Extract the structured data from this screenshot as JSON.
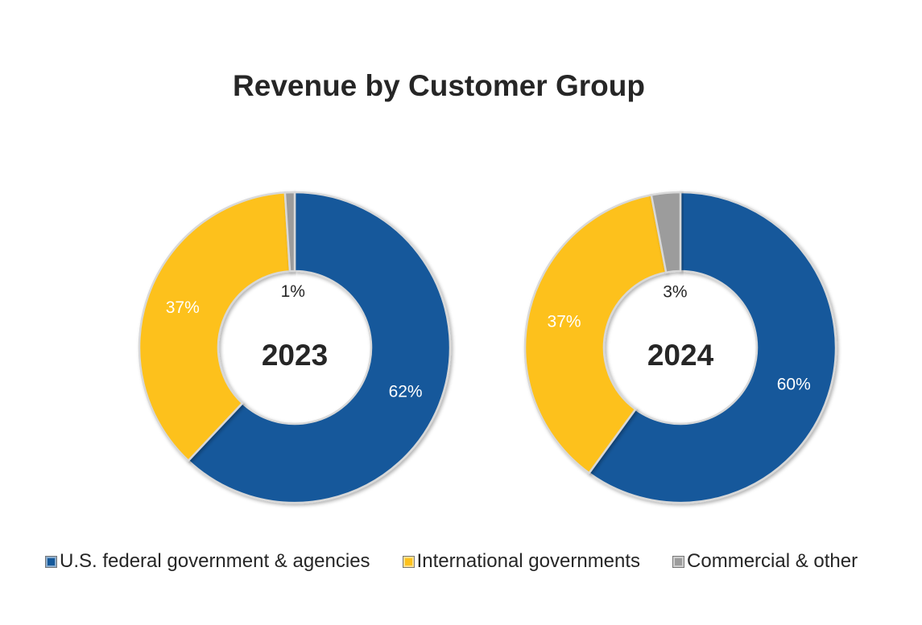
{
  "chart_data": {
    "type": "donut",
    "title": "Revenue by Customer Group",
    "categories": [
      "U.S. federal government & agencies",
      "International governments",
      "Commercial & other"
    ],
    "colors": [
      "#15599b",
      "#fdc11c",
      "#9c9c9c"
    ],
    "charts": [
      {
        "center_label": "2023",
        "values": [
          62,
          37,
          1
        ],
        "labels": [
          "62%",
          "37%",
          "1%"
        ]
      },
      {
        "center_label": "2024",
        "values": [
          60,
          37,
          3
        ],
        "labels": [
          "60%",
          "37%",
          "3%"
        ]
      }
    ],
    "legend_position": "bottom"
  }
}
